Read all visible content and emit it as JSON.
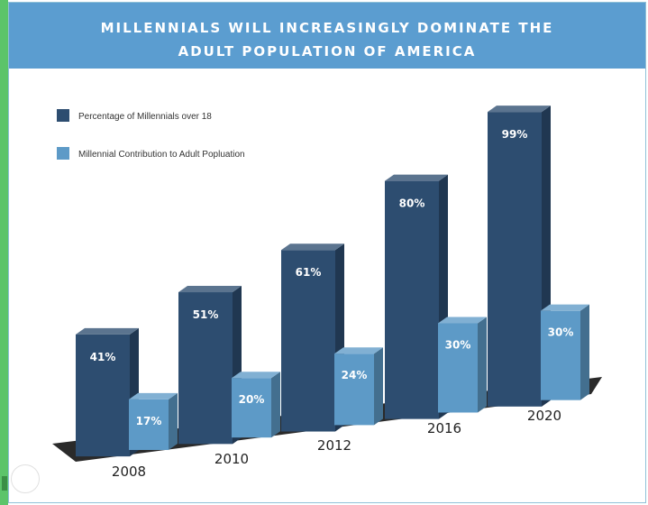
{
  "header": {
    "title_line1": "MILLENNIALS WILL INCREASINGLY DOMINATE THE",
    "title_line2": "ADULT POPULATION OF AMERICA"
  },
  "colors": {
    "banner": "#5b9dd0",
    "series_dark": "#2d4d70",
    "series_light": "#5d9ac7",
    "floor": "#2a2a2a"
  },
  "chart_data": {
    "type": "bar",
    "title": "MILLENNIALS WILL INCREASINGLY DOMINATE THE ADULT POPULATION OF AMERICA",
    "categories": [
      "2008",
      "2010",
      "2012",
      "2016",
      "2020"
    ],
    "series": [
      {
        "name": "Percentage of Millennials over 18",
        "values": [
          41,
          51,
          61,
          80,
          99
        ],
        "labels": [
          "41%",
          "51%",
          "61%",
          "80%",
          "99%"
        ]
      },
      {
        "name": "Millennial Contribution to Adult Popluation",
        "values": [
          17,
          20,
          24,
          30,
          30
        ],
        "labels": [
          "17%",
          "20%",
          "24%",
          "30%",
          "30%"
        ]
      }
    ],
    "ylim": [
      0,
      100
    ],
    "grid": false,
    "legend": "top-left",
    "style": "3d"
  }
}
